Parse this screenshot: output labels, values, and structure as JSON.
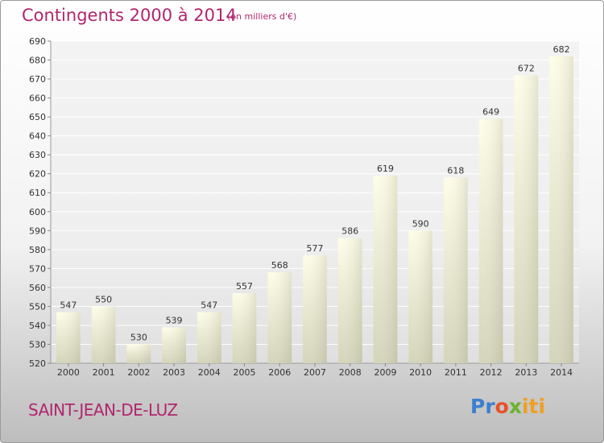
{
  "title": "Contingents 2000 à 2014",
  "subtitle": "(en milliers d'€)",
  "place": "SAINT-JEAN-DE-LUZ",
  "brand": "Proxiti",
  "brand_parts": [
    "Pr",
    "o",
    "x",
    "iti"
  ],
  "colors": {
    "title": "#b2256e",
    "bar_light": "#fbfbe0",
    "bar_dark": "#d2d2b8",
    "grid": "#ffffff",
    "axis_text": "#333333"
  },
  "chart_data": {
    "type": "bar",
    "title": "Contingents 2000 à 2014",
    "subtitle": "(en milliers d'€)",
    "xlabel": "",
    "ylabel": "",
    "categories": [
      "2000",
      "2001",
      "2002",
      "2003",
      "2004",
      "2005",
      "2006",
      "2007",
      "2008",
      "2009",
      "2010",
      "2011",
      "2012",
      "2013",
      "2014"
    ],
    "values": [
      547,
      550,
      530,
      539,
      547,
      557,
      568,
      577,
      586,
      619,
      590,
      618,
      649,
      672,
      682
    ],
    "ylim": [
      520,
      690
    ],
    "ytick_step": 10,
    "grid": true
  }
}
